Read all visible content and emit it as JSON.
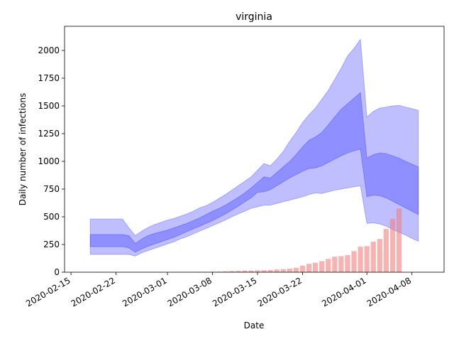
{
  "chart_data": {
    "type": "bar_bands",
    "title": "virginia",
    "xlabel": "Date",
    "ylabel": "Daily number of infections",
    "x": [
      "2020-02-18",
      "2020-02-19",
      "2020-02-20",
      "2020-02-21",
      "2020-02-22",
      "2020-02-23",
      "2020-02-24",
      "2020-02-25",
      "2020-02-26",
      "2020-02-27",
      "2020-02-28",
      "2020-02-29",
      "2020-03-01",
      "2020-03-02",
      "2020-03-03",
      "2020-03-04",
      "2020-03-05",
      "2020-03-06",
      "2020-03-07",
      "2020-03-08",
      "2020-03-09",
      "2020-03-10",
      "2020-03-11",
      "2020-03-12",
      "2020-03-13",
      "2020-03-14",
      "2020-03-15",
      "2020-03-16",
      "2020-03-17",
      "2020-03-18",
      "2020-03-19",
      "2020-03-20",
      "2020-03-21",
      "2020-03-22",
      "2020-03-23",
      "2020-03-24",
      "2020-03-25",
      "2020-03-26",
      "2020-03-27",
      "2020-03-28",
      "2020-03-29",
      "2020-03-30",
      "2020-03-31",
      "2020-04-01",
      "2020-04-02",
      "2020-04-03",
      "2020-04-04",
      "2020-04-05",
      "2020-04-06",
      "2020-04-07",
      "2020-04-08",
      "2020-04-09"
    ],
    "bars": {
      "color": "#f08080",
      "opacity": 0.6,
      "values": [
        1,
        1,
        1,
        1,
        1,
        1,
        1,
        1,
        1,
        1,
        1,
        1,
        1,
        1,
        2,
        2,
        2,
        3,
        3,
        4,
        5,
        8,
        10,
        12,
        15,
        15,
        17,
        18,
        20,
        25,
        28,
        33,
        40,
        60,
        75,
        85,
        100,
        120,
        140,
        145,
        155,
        190,
        230,
        235,
        275,
        300,
        390,
        480,
        575,
        null,
        null,
        null
      ]
    },
    "bands": [
      {
        "color": "#0000ff",
        "opacity": 0.25,
        "lower": [
          160,
          160,
          160,
          160,
          160,
          160,
          160,
          145,
          175,
          195,
          215,
          235,
          255,
          275,
          300,
          320,
          345,
          370,
          395,
          420,
          445,
          470,
          500,
          525,
          550,
          575,
          590,
          605,
          605,
          620,
          635,
          650,
          665,
          680,
          700,
          715,
          710,
          725,
          740,
          750,
          760,
          770,
          780,
          440,
          445,
          435,
          415,
          385,
          360,
          335,
          305,
          280
        ],
        "upper": [
          480,
          480,
          480,
          480,
          480,
          480,
          400,
          330,
          370,
          405,
          430,
          450,
          470,
          485,
          505,
          525,
          550,
          580,
          600,
          630,
          665,
          700,
          740,
          780,
          820,
          860,
          920,
          980,
          960,
          1020,
          1090,
          1180,
          1260,
          1350,
          1420,
          1480,
          1560,
          1640,
          1740,
          1840,
          1950,
          2020,
          2100,
          1400,
          1450,
          1480,
          1490,
          1500,
          1505,
          1490,
          1475,
          1460
        ]
      },
      {
        "color": "#0000ff",
        "opacity": 0.25,
        "lower": [
          230,
          230,
          230,
          230,
          230,
          230,
          220,
          180,
          210,
          235,
          255,
          275,
          295,
          315,
          340,
          365,
          390,
          415,
          440,
          465,
          495,
          525,
          560,
          595,
          635,
          670,
          720,
          725,
          745,
          780,
          815,
          850,
          880,
          910,
          935,
          940,
          960,
          990,
          1020,
          1050,
          1075,
          1095,
          1110,
          680,
          695,
          690,
          670,
          640,
          610,
          580,
          550,
          520
        ],
        "upper": [
          340,
          340,
          340,
          340,
          340,
          340,
          330,
          260,
          300,
          330,
          350,
          365,
          380,
          400,
          420,
          440,
          465,
          490,
          520,
          550,
          575,
          605,
          640,
          675,
          715,
          760,
          810,
          860,
          850,
          900,
          950,
          1000,
          1060,
          1130,
          1190,
          1220,
          1260,
          1330,
          1400,
          1470,
          1520,
          1570,
          1620,
          1030,
          1060,
          1075,
          1070,
          1050,
          1030,
          1000,
          975,
          950
        ]
      }
    ],
    "xlim": [
      "2020-02-14",
      "2020-04-13"
    ],
    "xticks": [
      "2020-02-15",
      "2020-02-22",
      "2020-03-01",
      "2020-03-08",
      "2020-03-15",
      "2020-03-22",
      "2020-04-01",
      "2020-04-08"
    ],
    "ylim": [
      0,
      2218
    ],
    "yticks": [
      0,
      250,
      500,
      750,
      1000,
      1250,
      1500,
      1750,
      2000
    ]
  }
}
